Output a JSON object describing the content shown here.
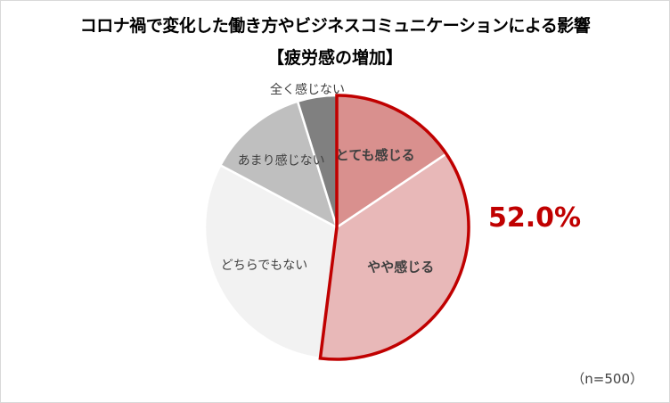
{
  "chart_data": {
    "type": "pie",
    "title": "コロナ禍で変化した働き方やビジネスコミュニケーションによる影響",
    "subtitle": "【疲労感の増加】",
    "slices": [
      {
        "label": "とても感じる",
        "value": 15.6,
        "color": "#d9908e",
        "highlight": true
      },
      {
        "label": "やや感じる",
        "value": 36.4,
        "color": "#e8b8b8",
        "highlight": true
      },
      {
        "label": "どちらでもない",
        "value": 30.8,
        "color": "#f2f2f2",
        "highlight": false
      },
      {
        "label": "あまり感じない",
        "value": 12.4,
        "color": "#bfbfbf",
        "highlight": false
      },
      {
        "label": "全く感じない",
        "value": 4.8,
        "color": "#808080",
        "highlight": false
      }
    ],
    "callout": "52.0%",
    "callout_color": "#c00000",
    "sample_note": "（n=500）"
  }
}
